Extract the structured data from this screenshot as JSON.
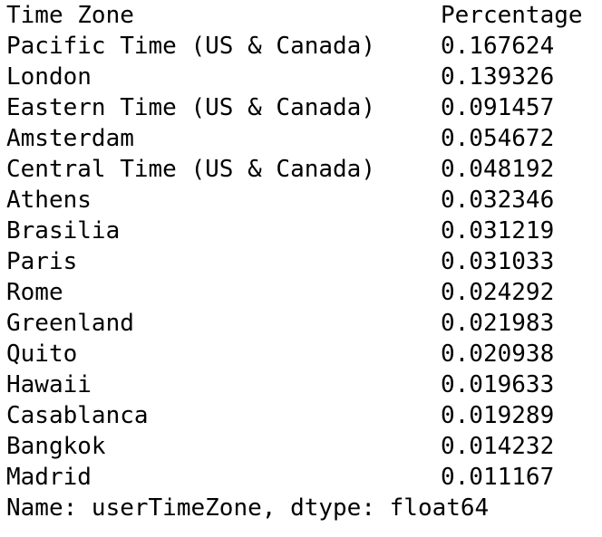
{
  "header": {
    "index_label": "Time Zone",
    "column_label": "Percentage"
  },
  "rows": [
    {
      "name": "Pacific Time (US & Canada)",
      "value": "0.167624"
    },
    {
      "name": "London",
      "value": "0.139326"
    },
    {
      "name": "Eastern Time (US & Canada)",
      "value": "0.091457"
    },
    {
      "name": "Amsterdam",
      "value": "0.054672"
    },
    {
      "name": "Central Time (US & Canada)",
      "value": "0.048192"
    },
    {
      "name": "Athens",
      "value": "0.032346"
    },
    {
      "name": "Brasilia",
      "value": "0.031219"
    },
    {
      "name": "Paris",
      "value": "0.031033"
    },
    {
      "name": "Rome",
      "value": "0.024292"
    },
    {
      "name": "Greenland",
      "value": "0.021983"
    },
    {
      "name": "Quito",
      "value": "0.020938"
    },
    {
      "name": "Hawaii",
      "value": "0.019633"
    },
    {
      "name": "Casablanca",
      "value": "0.019289"
    },
    {
      "name": "Bangkok",
      "value": "0.014232"
    },
    {
      "name": "Madrid",
      "value": "0.011167"
    }
  ],
  "footer": "Name: userTimeZone, dtype: float64"
}
